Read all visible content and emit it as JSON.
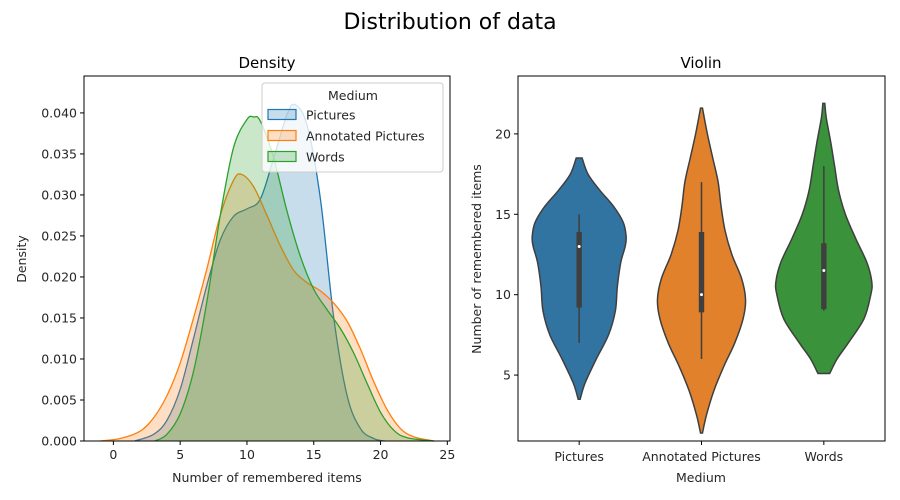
{
  "figure": {
    "suptitle": "Distribution of data"
  },
  "chart_data": [
    {
      "type": "area",
      "subtype": "kde",
      "title": "Density",
      "xlabel": "Number of remembered items",
      "ylabel": "Density",
      "xlim": [
        -2.2,
        25.2
      ],
      "ylim": [
        0,
        0.0445
      ],
      "xticks": [
        0,
        5,
        10,
        15,
        20,
        25
      ],
      "xtick_labels": [
        "0",
        "5",
        "10",
        "15",
        "20",
        "25"
      ],
      "yticks": [
        0.0,
        0.005,
        0.01,
        0.015,
        0.02,
        0.025,
        0.03,
        0.035,
        0.04
      ],
      "ytick_labels": [
        "0.000",
        "0.005",
        "0.010",
        "0.015",
        "0.020",
        "0.025",
        "0.030",
        "0.035",
        "0.040"
      ],
      "grid": false,
      "legend": {
        "title": "Medium",
        "placement": "top-right",
        "entries": [
          "Pictures",
          "Annotated Pictures",
          "Words"
        ]
      },
      "series": [
        {
          "name": "Pictures",
          "color": "#1f77b4",
          "x": [
            1.6,
            3,
            4,
            5,
            6,
            7,
            8,
            9,
            10,
            11,
            12,
            13,
            13.6,
            14.5,
            15.5,
            16.5,
            17.5,
            18.5,
            19.5,
            20.3
          ],
          "y": [
            0.0,
            0.0008,
            0.0025,
            0.0063,
            0.0125,
            0.019,
            0.0245,
            0.0274,
            0.0283,
            0.0295,
            0.0345,
            0.0398,
            0.041,
            0.0385,
            0.0295,
            0.015,
            0.0055,
            0.0015,
            0.0003,
            0.0
          ]
        },
        {
          "name": "Annotated Pictures",
          "color": "#ff7f0e",
          "x": [
            -1,
            0.5,
            2,
            3,
            4,
            5,
            6,
            7,
            8,
            9,
            9.6,
            10.5,
            11.5,
            12.5,
            13.5,
            14.5,
            15.5,
            16.5,
            17.5,
            18.5,
            19.5,
            20.5,
            21.5,
            22.5,
            24
          ],
          "y": [
            0.0,
            0.0003,
            0.0012,
            0.0028,
            0.0055,
            0.0095,
            0.015,
            0.021,
            0.0275,
            0.0318,
            0.0325,
            0.031,
            0.0275,
            0.0238,
            0.0208,
            0.0193,
            0.0183,
            0.0168,
            0.0146,
            0.0112,
            0.0072,
            0.0038,
            0.0015,
            0.0005,
            0.0
          ]
        },
        {
          "name": "Words",
          "color": "#2ca02c",
          "x": [
            3.1,
            4,
            5,
            6,
            7,
            8,
            9,
            10,
            10.5,
            11,
            12,
            13,
            14,
            15,
            16,
            17,
            18,
            19,
            20,
            21,
            22,
            24
          ],
          "y": [
            0.0,
            0.0008,
            0.0033,
            0.0085,
            0.017,
            0.0275,
            0.0358,
            0.0392,
            0.0395,
            0.039,
            0.0345,
            0.028,
            0.0225,
            0.0185,
            0.016,
            0.0137,
            0.0107,
            0.007,
            0.0035,
            0.0013,
            0.0004,
            0.0
          ]
        }
      ]
    },
    {
      "type": "violin",
      "title": "Violin",
      "xlabel": "Medium",
      "ylabel": "Number of remembered items",
      "categories": [
        "Pictures",
        "Annotated Pictures",
        "Words"
      ],
      "ylim": [
        0.9,
        23.6
      ],
      "yticks": [
        5,
        10,
        15,
        20
      ],
      "ytick_labels": [
        "5",
        "10",
        "15",
        "20"
      ],
      "grid": false,
      "series": [
        {
          "name": "Pictures",
          "color": "#3274a1",
          "min_extent": 3.5,
          "max_extent": 18.5,
          "whisker_low": 7,
          "q1": 9.2,
          "median": 13,
          "q3": 13.9,
          "whisker_high": 15,
          "profile_y": [
            3.5,
            4.5,
            6,
            7.5,
            9,
            10.5,
            12,
            13,
            13.6,
            14.5,
            15.5,
            16.5,
            17.5,
            18.5
          ],
          "profile_width": [
            0.02,
            0.12,
            0.35,
            0.6,
            0.74,
            0.78,
            0.85,
            0.94,
            0.96,
            0.9,
            0.7,
            0.42,
            0.18,
            0.06
          ]
        },
        {
          "name": "Annotated Pictures",
          "color": "#e1812c",
          "min_extent": 1.4,
          "max_extent": 21.6,
          "whisker_low": 6,
          "q1": 8.9,
          "median": 10,
          "q3": 13.9,
          "whisker_high": 17,
          "profile_y": [
            1.4,
            2.5,
            4,
            5.5,
            7,
            8.5,
            9.7,
            11,
            12.5,
            14,
            15.5,
            17,
            18.5,
            20,
            21.6
          ],
          "profile_width": [
            0.02,
            0.1,
            0.25,
            0.45,
            0.68,
            0.85,
            0.9,
            0.82,
            0.62,
            0.48,
            0.4,
            0.34,
            0.23,
            0.12,
            0.02
          ]
        },
        {
          "name": "Words",
          "color": "#3a923a",
          "min_extent": 5.1,
          "max_extent": 21.9,
          "whisker_low": 9,
          "q1": 9.1,
          "median": 11.5,
          "q3": 13.2,
          "whisker_high": 18,
          "profile_y": [
            5.1,
            6,
            7,
            8.5,
            10,
            10.8,
            12,
            13.5,
            15,
            16.5,
            18,
            19.5,
            21,
            21.9
          ],
          "profile_width": [
            0.12,
            0.27,
            0.5,
            0.82,
            0.96,
            0.98,
            0.88,
            0.65,
            0.44,
            0.3,
            0.22,
            0.14,
            0.05,
            0.02
          ]
        }
      ]
    }
  ]
}
